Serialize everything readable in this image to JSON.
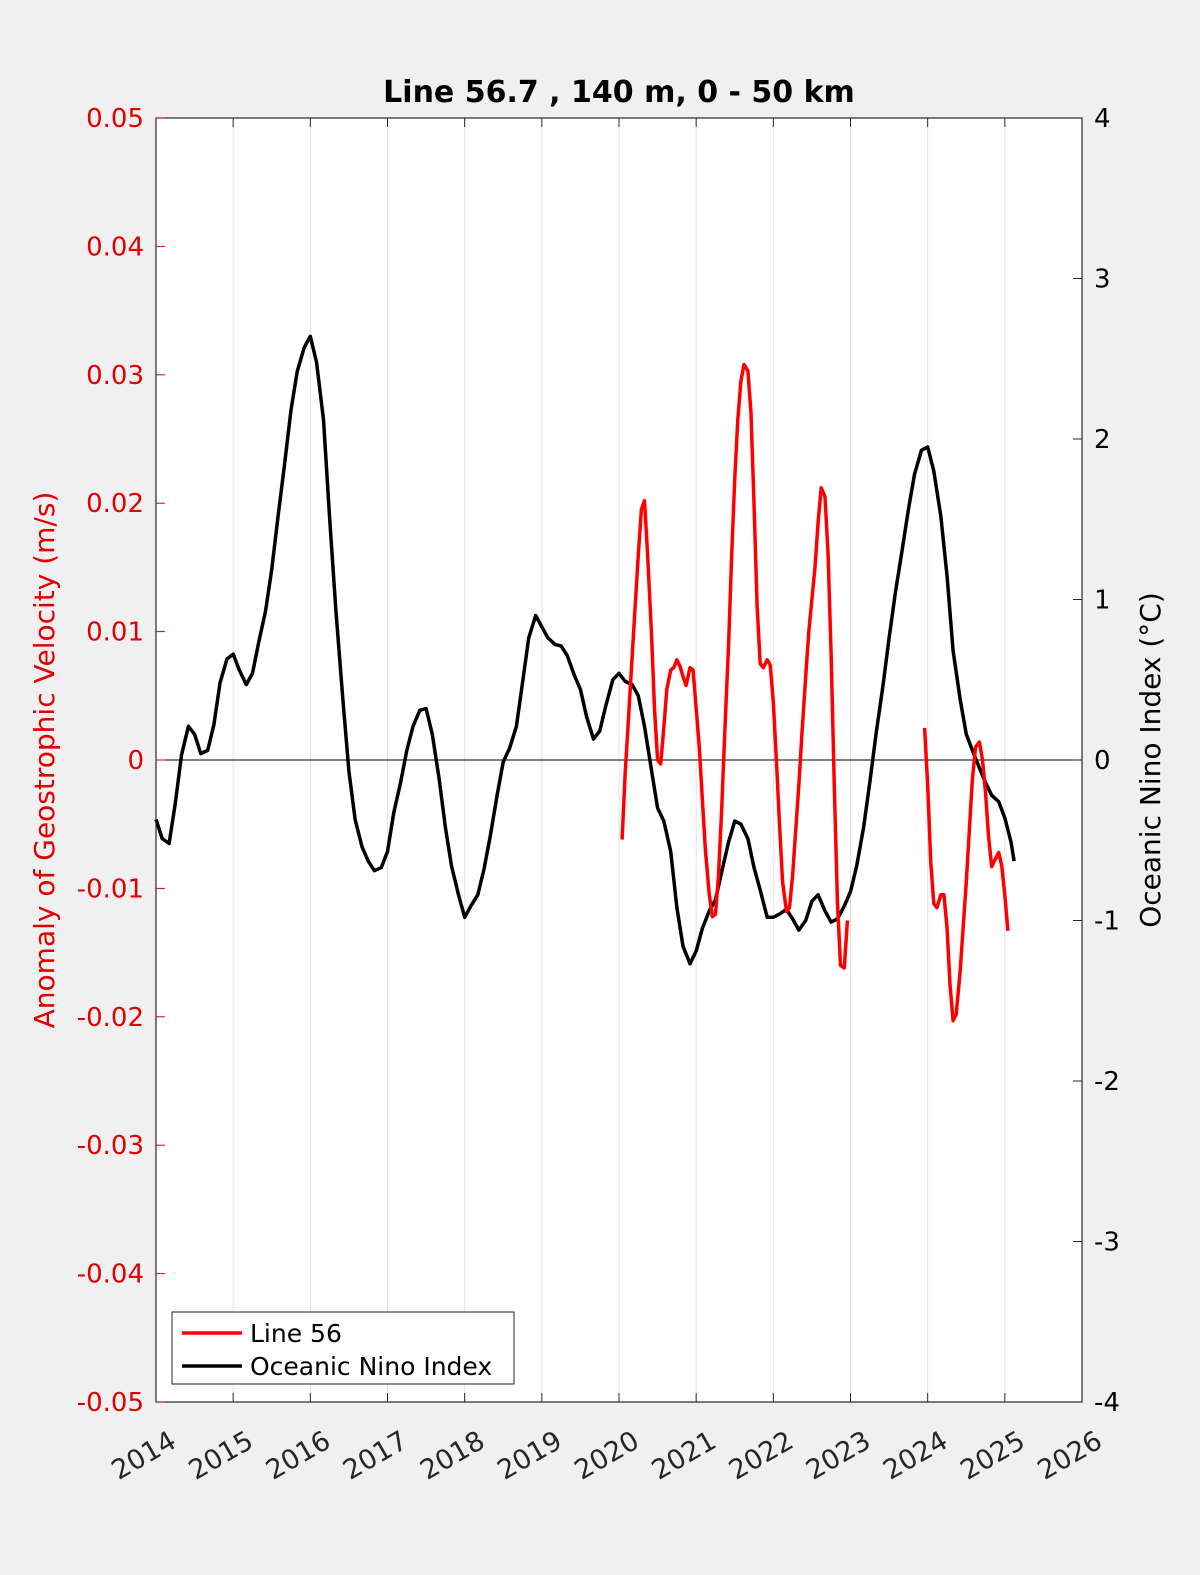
{
  "chart_data": {
    "type": "line",
    "title": "Line 56.7 , 140 m, 0 - 50 km",
    "xlabel": "",
    "ylabel_left": "Anomaly of Geostrophic Velocity (m/s)",
    "ylabel_right": "Oceanic Nino Index (°C)",
    "xlim": [
      2014,
      2026
    ],
    "ylim_left": [
      -0.05,
      0.05
    ],
    "ylim_right": [
      -4,
      4
    ],
    "xticks": [
      "2014",
      "2015",
      "2016",
      "2017",
      "2018",
      "2019",
      "2020",
      "2021",
      "2022",
      "2023",
      "2024",
      "2025",
      "2026"
    ],
    "yticks_left": [
      "-0.05",
      "-0.04",
      "-0.03",
      "-0.02",
      "-0.01",
      "0",
      "0.01",
      "0.02",
      "0.03",
      "0.04",
      "0.05"
    ],
    "yticks_right": [
      "-4",
      "-3",
      "-2",
      "-1",
      "0",
      "1",
      "2",
      "3",
      "4"
    ],
    "grid": "vertical only",
    "zero_line": true,
    "legend_position": "bottom-left",
    "colors": {
      "line56": "#ff0000",
      "oni": "#000000",
      "left_axis": "#e00000",
      "right_axis": "#000000"
    },
    "series": [
      {
        "name": "Line 56",
        "axis": "left",
        "color": "#ff0000",
        "segments": [
          [
            [
              2020.04,
              -0.0062
            ],
            [
              2020.08,
              -0.001
            ],
            [
              2020.12,
              0.003
            ],
            [
              2020.17,
              0.008
            ],
            [
              2020.21,
              0.012
            ],
            [
              2020.25,
              0.016
            ],
            [
              2020.29,
              0.0195
            ],
            [
              2020.33,
              0.0202
            ],
            [
              2020.37,
              0.016
            ],
            [
              2020.42,
              0.01
            ],
            [
              2020.46,
              0.004
            ],
            [
              2020.5,
              0.0
            ],
            [
              2020.54,
              -0.0003
            ],
            [
              2020.58,
              0.0025
            ],
            [
              2020.62,
              0.0055
            ],
            [
              2020.67,
              0.007
            ],
            [
              2020.71,
              0.0072
            ],
            [
              2020.75,
              0.0078
            ],
            [
              2020.79,
              0.0073
            ],
            [
              2020.83,
              0.0065
            ],
            [
              2020.87,
              0.0058
            ],
            [
              2020.92,
              0.0072
            ],
            [
              2020.96,
              0.007
            ],
            [
              2021.0,
              0.004
            ],
            [
              2021.04,
              0.001
            ],
            [
              2021.08,
              -0.003
            ],
            [
              2021.12,
              -0.007
            ],
            [
              2021.17,
              -0.0105
            ],
            [
              2021.21,
              -0.0122
            ],
            [
              2021.25,
              -0.012
            ],
            [
              2021.29,
              -0.009
            ],
            [
              2021.33,
              -0.004
            ],
            [
              2021.37,
              0.002
            ],
            [
              2021.42,
              0.009
            ],
            [
              2021.46,
              0.016
            ],
            [
              2021.5,
              0.022
            ],
            [
              2021.54,
              0.0265
            ],
            [
              2021.58,
              0.0295
            ],
            [
              2021.62,
              0.0308
            ],
            [
              2021.67,
              0.0303
            ],
            [
              2021.71,
              0.027
            ],
            [
              2021.75,
              0.02
            ],
            [
              2021.79,
              0.012
            ],
            [
              2021.83,
              0.0075
            ],
            [
              2021.87,
              0.0072
            ],
            [
              2021.92,
              0.0078
            ],
            [
              2021.96,
              0.0074
            ],
            [
              2022.0,
              0.0045
            ],
            [
              2022.04,
              0.0
            ],
            [
              2022.08,
              -0.005
            ],
            [
              2022.12,
              -0.0095
            ],
            [
              2022.17,
              -0.0118
            ],
            [
              2022.21,
              -0.0115
            ],
            [
              2022.25,
              -0.009
            ],
            [
              2022.29,
              -0.0055
            ],
            [
              2022.33,
              -0.002
            ],
            [
              2022.37,
              0.002
            ],
            [
              2022.42,
              0.0065
            ],
            [
              2022.46,
              0.01
            ],
            [
              2022.5,
              0.0125
            ],
            [
              2022.54,
              0.015
            ],
            [
              2022.58,
              0.0185
            ],
            [
              2022.62,
              0.0212
            ],
            [
              2022.67,
              0.0205
            ],
            [
              2022.71,
              0.016
            ],
            [
              2022.75,
              0.008
            ],
            [
              2022.79,
              -0.002
            ],
            [
              2022.83,
              -0.011
            ],
            [
              2022.87,
              -0.016
            ],
            [
              2022.92,
              -0.0162
            ],
            [
              2022.96,
              -0.0125
            ]
          ],
          [
            [
              2023.96,
              0.0025
            ],
            [
              2024.0,
              -0.002
            ],
            [
              2024.04,
              -0.008
            ],
            [
              2024.08,
              -0.0112
            ],
            [
              2024.12,
              -0.0115
            ],
            [
              2024.17,
              -0.0105
            ],
            [
              2024.21,
              -0.0105
            ],
            [
              2024.25,
              -0.013
            ],
            [
              2024.29,
              -0.0175
            ],
            [
              2024.33,
              -0.0203
            ],
            [
              2024.37,
              -0.0198
            ],
            [
              2024.42,
              -0.0165
            ],
            [
              2024.46,
              -0.013
            ],
            [
              2024.5,
              -0.0095
            ],
            [
              2024.54,
              -0.0055
            ],
            [
              2024.58,
              -0.0015
            ],
            [
              2024.62,
              0.001
            ],
            [
              2024.67,
              0.0014
            ],
            [
              2024.71,
              0.0
            ],
            [
              2024.75,
              -0.0025
            ],
            [
              2024.79,
              -0.006
            ],
            [
              2024.83,
              -0.0083
            ],
            [
              2024.87,
              -0.0078
            ],
            [
              2024.92,
              -0.0072
            ],
            [
              2024.96,
              -0.0082
            ],
            [
              2025.0,
              -0.0105
            ],
            [
              2025.04,
              -0.0133
            ]
          ]
        ]
      },
      {
        "name": "Oceanic Nino Index",
        "axis": "right",
        "color": "#000000",
        "points": [
          [
            2014.0,
            -0.37
          ],
          [
            2014.08,
            -0.49
          ],
          [
            2014.17,
            -0.52
          ],
          [
            2014.25,
            -0.27
          ],
          [
            2014.33,
            0.03
          ],
          [
            2014.42,
            0.21
          ],
          [
            2014.5,
            0.16
          ],
          [
            2014.58,
            0.04
          ],
          [
            2014.67,
            0.06
          ],
          [
            2014.75,
            0.22
          ],
          [
            2014.83,
            0.48
          ],
          [
            2014.92,
            0.63
          ],
          [
            2015.0,
            0.66
          ],
          [
            2015.08,
            0.56
          ],
          [
            2015.17,
            0.47
          ],
          [
            2015.25,
            0.54
          ],
          [
            2015.33,
            0.73
          ],
          [
            2015.42,
            0.93
          ],
          [
            2015.5,
            1.19
          ],
          [
            2015.58,
            1.51
          ],
          [
            2015.67,
            1.86
          ],
          [
            2015.75,
            2.18
          ],
          [
            2015.83,
            2.42
          ],
          [
            2015.92,
            2.57
          ],
          [
            2016.0,
            2.64
          ],
          [
            2016.08,
            2.48
          ],
          [
            2016.17,
            2.12
          ],
          [
            2016.25,
            1.51
          ],
          [
            2016.33,
            0.94
          ],
          [
            2016.42,
            0.39
          ],
          [
            2016.5,
            -0.07
          ],
          [
            2016.58,
            -0.37
          ],
          [
            2016.67,
            -0.54
          ],
          [
            2016.75,
            -0.63
          ],
          [
            2016.83,
            -0.69
          ],
          [
            2016.92,
            -0.67
          ],
          [
            2017.0,
            -0.57
          ],
          [
            2017.08,
            -0.33
          ],
          [
            2017.17,
            -0.14
          ],
          [
            2017.25,
            0.06
          ],
          [
            2017.33,
            0.21
          ],
          [
            2017.42,
            0.31
          ],
          [
            2017.5,
            0.32
          ],
          [
            2017.58,
            0.16
          ],
          [
            2017.67,
            -0.12
          ],
          [
            2017.75,
            -0.42
          ],
          [
            2017.83,
            -0.66
          ],
          [
            2017.92,
            -0.84
          ],
          [
            2018.0,
            -0.98
          ],
          [
            2018.08,
            -0.91
          ],
          [
            2018.17,
            -0.84
          ],
          [
            2018.25,
            -0.68
          ],
          [
            2018.33,
            -0.48
          ],
          [
            2018.42,
            -0.22
          ],
          [
            2018.5,
            -0.01
          ],
          [
            2018.58,
            0.07
          ],
          [
            2018.67,
            0.21
          ],
          [
            2018.75,
            0.48
          ],
          [
            2018.83,
            0.76
          ],
          [
            2018.92,
            0.9
          ],
          [
            2019.0,
            0.83
          ],
          [
            2019.08,
            0.76
          ],
          [
            2019.17,
            0.72
          ],
          [
            2019.25,
            0.71
          ],
          [
            2019.33,
            0.65
          ],
          [
            2019.42,
            0.53
          ],
          [
            2019.5,
            0.44
          ],
          [
            2019.58,
            0.27
          ],
          [
            2019.67,
            0.13
          ],
          [
            2019.75,
            0.18
          ],
          [
            2019.83,
            0.34
          ],
          [
            2019.92,
            0.5
          ],
          [
            2020.0,
            0.54
          ],
          [
            2020.08,
            0.49
          ],
          [
            2020.17,
            0.47
          ],
          [
            2020.25,
            0.4
          ],
          [
            2020.33,
            0.21
          ],
          [
            2020.42,
            -0.06
          ],
          [
            2020.5,
            -0.3
          ],
          [
            2020.58,
            -0.38
          ],
          [
            2020.67,
            -0.57
          ],
          [
            2020.75,
            -0.92
          ],
          [
            2020.83,
            -1.16
          ],
          [
            2020.92,
            -1.27
          ],
          [
            2021.0,
            -1.19
          ],
          [
            2021.08,
            -1.05
          ],
          [
            2021.17,
            -0.94
          ],
          [
            2021.25,
            -0.87
          ],
          [
            2021.33,
            -0.7
          ],
          [
            2021.42,
            -0.51
          ],
          [
            2021.5,
            -0.38
          ],
          [
            2021.58,
            -0.4
          ],
          [
            2021.67,
            -0.49
          ],
          [
            2021.75,
            -0.67
          ],
          [
            2021.83,
            -0.81
          ],
          [
            2021.92,
            -0.98
          ],
          [
            2022.0,
            -0.98
          ],
          [
            2022.08,
            -0.96
          ],
          [
            2022.17,
            -0.93
          ],
          [
            2022.25,
            -0.99
          ],
          [
            2022.33,
            -1.06
          ],
          [
            2022.42,
            -1.0
          ],
          [
            2022.5,
            -0.88
          ],
          [
            2022.58,
            -0.84
          ],
          [
            2022.67,
            -0.94
          ],
          [
            2022.75,
            -1.01
          ],
          [
            2022.83,
            -0.99
          ],
          [
            2022.92,
            -0.91
          ],
          [
            2023.0,
            -0.82
          ],
          [
            2023.08,
            -0.66
          ],
          [
            2023.17,
            -0.42
          ],
          [
            2023.25,
            -0.14
          ],
          [
            2023.33,
            0.16
          ],
          [
            2023.42,
            0.46
          ],
          [
            2023.5,
            0.76
          ],
          [
            2023.58,
            1.04
          ],
          [
            2023.67,
            1.31
          ],
          [
            2023.75,
            1.56
          ],
          [
            2023.83,
            1.78
          ],
          [
            2023.92,
            1.93
          ],
          [
            2024.0,
            1.95
          ],
          [
            2024.08,
            1.8
          ],
          [
            2024.17,
            1.52
          ],
          [
            2024.25,
            1.15
          ],
          [
            2024.33,
            0.68
          ],
          [
            2024.42,
            0.38
          ],
          [
            2024.5,
            0.16
          ],
          [
            2024.58,
            0.06
          ],
          [
            2024.67,
            -0.05
          ],
          [
            2024.75,
            -0.14
          ],
          [
            2024.83,
            -0.22
          ],
          [
            2024.92,
            -0.26
          ],
          [
            2025.0,
            -0.36
          ],
          [
            2025.08,
            -0.51
          ],
          [
            2025.12,
            -0.63
          ]
        ]
      }
    ]
  }
}
